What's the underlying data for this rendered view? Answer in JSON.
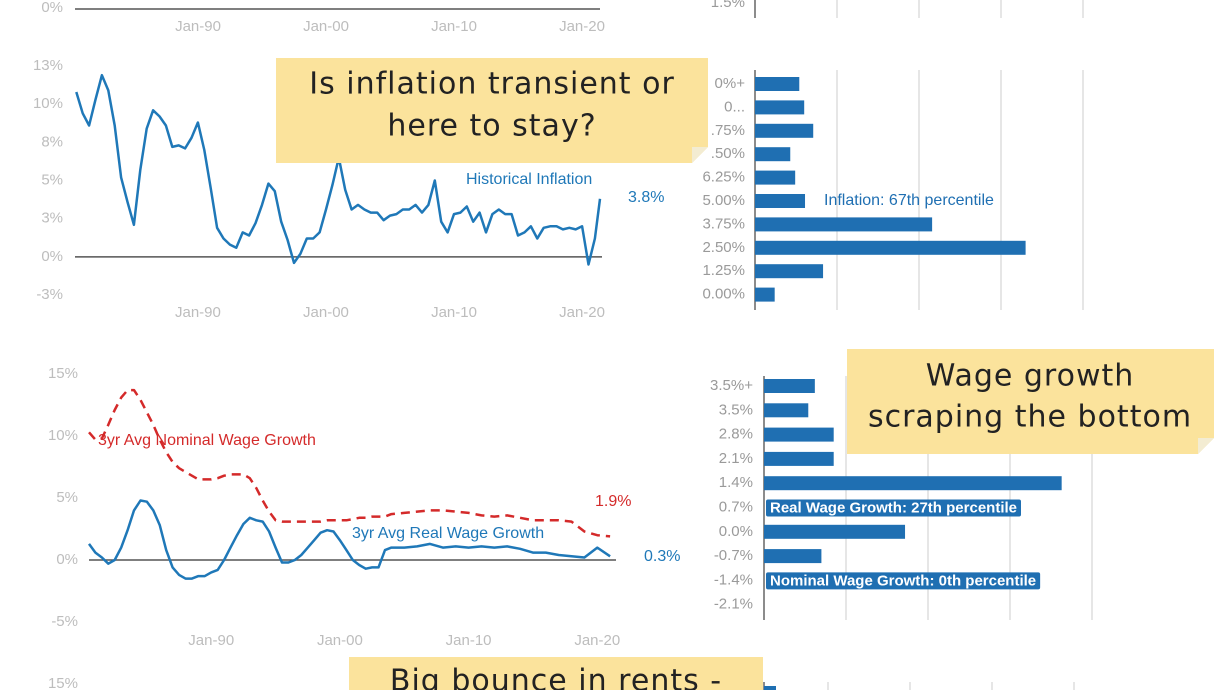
{
  "fragments": {
    "top_left": {
      "ytick": "0%",
      "xticks": [
        "Jan-90",
        "Jan-00",
        "Jan-10",
        "Jan-20"
      ]
    },
    "top_right": {
      "category": "1.5%"
    },
    "bottom_left": {
      "ytick": "15%"
    }
  },
  "notes": [
    {
      "lines": [
        "Is inflation transient or",
        "here to stay?"
      ]
    },
    {
      "lines": [
        "Wage growth",
        "scraping the bottom"
      ]
    },
    {
      "lines": [
        "Big bounce in rents -"
      ]
    }
  ],
  "chart_data": [
    {
      "type": "line",
      "xlim": [
        1980.4,
        2021.4
      ],
      "xticks": [
        {
          "value": 1990,
          "label": "Jan-90"
        },
        {
          "value": 2000,
          "label": "Jan-00"
        },
        {
          "value": 2010,
          "label": "Jan-10"
        },
        {
          "value": 2020,
          "label": "Jan-20"
        }
      ],
      "ylim": [
        -2.5,
        12.5
      ],
      "yticks": [
        {
          "value": 12.5,
          "label": "13%"
        },
        {
          "value": 10,
          "label": "10%"
        },
        {
          "value": 7.5,
          "label": "8%"
        },
        {
          "value": 5,
          "label": "5%"
        },
        {
          "value": 2.5,
          "label": "3%"
        },
        {
          "value": 0,
          "label": "0%"
        },
        {
          "value": -2.5,
          "label": "-3%"
        }
      ],
      "zero_line": true,
      "x": [
        1980.5,
        1981,
        1981.5,
        1982,
        1982.5,
        1983,
        1983.5,
        1984,
        1984.5,
        1985,
        1985.5,
        1986,
        1986.5,
        1987,
        1987.5,
        1988,
        1988.5,
        1989,
        1989.5,
        1990,
        1990.5,
        1991,
        1991.5,
        1992,
        1992.5,
        1993,
        1993.5,
        1994,
        1994.5,
        1995,
        1995.5,
        1996,
        1996.5,
        1997,
        1997.5,
        1998,
        1998.5,
        1999,
        1999.5,
        2000,
        2000.5,
        2001,
        2001.5,
        2002,
        2002.5,
        2003,
        2003.5,
        2004,
        2004.5,
        2005,
        2005.5,
        2006,
        2006.5,
        2007,
        2007.5,
        2008,
        2008.5,
        2009,
        2009.5,
        2010,
        2010.5,
        2011,
        2011.5,
        2012,
        2012.5,
        2013,
        2013.5,
        2014,
        2014.5,
        2015,
        2015.5,
        2016,
        2016.5,
        2017,
        2017.5,
        2018,
        2018.5,
        2019,
        2019.5,
        2020,
        2020.5,
        2021,
        2021.4
      ],
      "series": [
        {
          "name": "Historical Inflation",
          "color": "#1f78b8",
          "dashed": false,
          "end_label": "3.8%",
          "values": [
            10.8,
            9.4,
            8.6,
            10.3,
            11.9,
            10.9,
            8.6,
            5.2,
            3.6,
            2.1,
            5.7,
            8.4,
            9.6,
            9.2,
            8.6,
            7.2,
            7.3,
            7.1,
            7.8,
            8.8,
            7.0,
            4.5,
            1.9,
            1.2,
            0.8,
            0.6,
            1.6,
            1.4,
            2.2,
            3.4,
            4.8,
            4.3,
            2.3,
            1.1,
            -0.4,
            0.2,
            1.2,
            1.2,
            1.6,
            3.1,
            4.7,
            6.5,
            4.4,
            3.1,
            3.4,
            3.1,
            2.9,
            2.9,
            2.4,
            2.7,
            2.8,
            3.1,
            3.1,
            3.4,
            2.9,
            3.4,
            5.0,
            2.3,
            1.6,
            2.8,
            2.9,
            3.3,
            2.3,
            2.9,
            1.6,
            2.8,
            3.1,
            2.8,
            2.8,
            1.4,
            1.6,
            2.0,
            1.2,
            1.9,
            2.0,
            2.0,
            1.8,
            1.9,
            1.8,
            2.0,
            -0.5,
            1.2,
            3.8
          ]
        }
      ]
    },
    {
      "type": "barh",
      "categories": [
        "0%+",
        "0...",
        ".75%",
        ".50%",
        "6.25%",
        "5.00%",
        "3.75%",
        "2.50%",
        "1.25%",
        "0.00%"
      ],
      "values": [
        0.54,
        0.6,
        0.71,
        0.43,
        0.49,
        0.61,
        2.16,
        3.3,
        0.83,
        0.24
      ],
      "color": "#1f6fb2",
      "xlim": [
        0,
        4
      ],
      "gridlines": [
        1,
        2,
        3,
        4
      ],
      "boxed_annotations": false,
      "annotations": [
        {
          "text": "Inflation: 67th percentile",
          "row": 5
        }
      ]
    },
    {
      "type": "line",
      "xlim": [
        1980.5,
        2021.3
      ],
      "xticks": [
        {
          "value": 1990,
          "label": "Jan-90"
        },
        {
          "value": 2000,
          "label": "Jan-00"
        },
        {
          "value": 2010,
          "label": "Jan-10"
        },
        {
          "value": 2020,
          "label": "Jan-20"
        }
      ],
      "ylim": [
        -5,
        15
      ],
      "yticks": [
        {
          "value": 15,
          "label": "15%"
        },
        {
          "value": 10,
          "label": "10%"
        },
        {
          "value": 5,
          "label": "5%"
        },
        {
          "value": 0,
          "label": "0%"
        },
        {
          "value": -5,
          "label": "-5%"
        }
      ],
      "zero_line": true,
      "x": [
        1980.5,
        1981,
        1981.5,
        1982,
        1982.5,
        1983,
        1983.5,
        1984,
        1984.5,
        1985,
        1985.5,
        1986,
        1986.5,
        1987,
        1987.5,
        1988,
        1988.5,
        1989,
        1989.5,
        1990,
        1990.5,
        1991,
        1991.5,
        1992,
        1992.5,
        1993,
        1993.5,
        1994,
        1994.5,
        1995,
        1995.5,
        1996,
        1996.5,
        1997,
        1997.5,
        1998,
        1998.5,
        1999,
        1999.5,
        2000,
        2000.5,
        2001,
        2001.5,
        2002,
        2002.5,
        2003,
        2003.5,
        2004,
        2005,
        2006,
        2007,
        2008,
        2009,
        2010,
        2011,
        2012,
        2013,
        2014,
        2015,
        2016,
        2017,
        2018,
        2019,
        2020,
        2021
      ],
      "series": [
        {
          "name": "3yr Avg Nominal Wage Growth",
          "color": "#d42a2a",
          "dashed": true,
          "end_label": "1.9%",
          "values": [
            10.3,
            9.7,
            9.8,
            10.9,
            12.1,
            13.1,
            13.7,
            13.7,
            12.9,
            11.9,
            10.9,
            9.7,
            8.7,
            7.9,
            7.4,
            7.1,
            6.8,
            6.5,
            6.5,
            6.5,
            6.6,
            6.8,
            6.9,
            6.9,
            6.9,
            6.6,
            5.8,
            4.8,
            3.9,
            3.2,
            3.1,
            3.1,
            3.1,
            3.1,
            3.1,
            3.1,
            3.1,
            3.2,
            3.2,
            3.2,
            3.2,
            3.3,
            3.4,
            3.4,
            3.5,
            3.5,
            3.5,
            3.7,
            3.8,
            3.9,
            4.0,
            4.0,
            3.9,
            3.8,
            3.6,
            3.5,
            3.6,
            3.4,
            3.2,
            3.2,
            3.2,
            3.1,
            2.3,
            2.0,
            1.9
          ]
        },
        {
          "name": "3yr Avg Real Wage Growth",
          "color": "#1f78b8",
          "dashed": false,
          "end_label": "0.3%",
          "values": [
            1.3,
            0.6,
            0.2,
            -0.3,
            0.0,
            1.0,
            2.4,
            4.0,
            4.8,
            4.7,
            4.0,
            2.8,
            0.8,
            -0.6,
            -1.2,
            -1.5,
            -1.5,
            -1.3,
            -1.3,
            -1.0,
            -0.8,
            0.0,
            1.0,
            2.0,
            2.9,
            3.4,
            3.2,
            3.1,
            2.3,
            1.0,
            -0.2,
            -0.2,
            0.0,
            0.4,
            1.0,
            1.6,
            2.2,
            2.4,
            2.3,
            1.6,
            0.8,
            0.0,
            -0.4,
            -0.7,
            -0.6,
            -0.6,
            0.8,
            1.0,
            1.0,
            1.1,
            1.3,
            1.0,
            1.1,
            1.0,
            1.1,
            1.0,
            1.1,
            0.9,
            0.6,
            0.6,
            0.4,
            0.3,
            0.2,
            1.0,
            0.3
          ]
        }
      ]
    },
    {
      "type": "barh",
      "categories": [
        "3.5%+",
        "3.5%",
        "2.8%",
        "2.1%",
        "1.4%",
        "0.7%",
        "0.0%",
        "-0.7%",
        "-1.4%",
        "-2.1%"
      ],
      "values": [
        0.62,
        0.54,
        0.85,
        0.85,
        3.63,
        null,
        1.72,
        0.7,
        null,
        0
      ],
      "color": "#1f6fb2",
      "xlim": [
        0,
        4
      ],
      "gridlines": [
        1,
        2,
        3,
        4
      ],
      "boxed_annotations": true,
      "annotations": [
        {
          "text": "Real Wage Growth: 27th percentile",
          "row": 5
        },
        {
          "text": "Nominal Wage Growth: 0th percentile",
          "row": 8
        }
      ]
    }
  ]
}
